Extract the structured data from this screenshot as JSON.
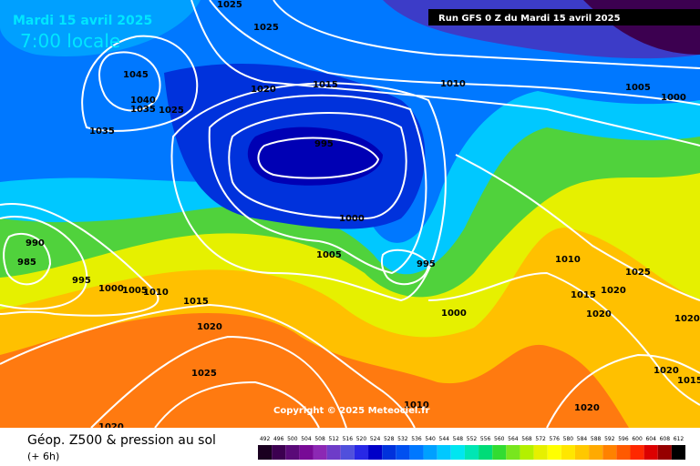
{
  "header": {
    "date": "Mardi 15 avril 2025",
    "time": "7:00 locale",
    "run": "Run GFS 0 Z du Mardi 15 avril 2025"
  },
  "isobar_labels": [
    "1025",
    "1025",
    "1020",
    "1015",
    "1010",
    "1005",
    "1000",
    "1045",
    "1040",
    "1035",
    "1025",
    "1035",
    "995",
    "1000",
    "1005",
    "995",
    "990",
    "985",
    "995",
    "1000",
    "1005",
    "1010",
    "1015",
    "1020",
    "1025",
    "1020",
    "1010",
    "1000",
    "1010",
    "1025",
    "1015",
    "1020",
    "1020",
    "1020",
    "1020",
    "1015",
    "1020"
  ],
  "copyright": "Copyright © 2025 Meteociel.fr",
  "legend": {
    "title": "Géop. Z500 & pression au sol",
    "lead": "(+ 6h)",
    "scale": [
      492,
      496,
      500,
      504,
      508,
      512,
      516,
      520,
      524,
      528,
      532,
      536,
      540,
      544,
      548,
      552,
      556,
      560,
      564,
      568,
      572,
      576,
      580,
      584,
      588,
      592,
      596,
      600,
      604,
      608,
      612
    ],
    "colors": [
      "#1a0020",
      "#3c0050",
      "#5a0a78",
      "#780a96",
      "#8c28b4",
      "#6e3cc8",
      "#5050dc",
      "#2828e6",
      "#0000c8",
      "#0032dc",
      "#0050f0",
      "#0078ff",
      "#00a0ff",
      "#00c8ff",
      "#00e6f0",
      "#00e6b4",
      "#00dc78",
      "#32dc32",
      "#78e61e",
      "#b4f000",
      "#e6f000",
      "#ffff00",
      "#ffe600",
      "#ffc800",
      "#ffaa00",
      "#ff8200",
      "#ff5a00",
      "#ff2800",
      "#dc0000",
      "#960000",
      "#000000"
    ]
  }
}
